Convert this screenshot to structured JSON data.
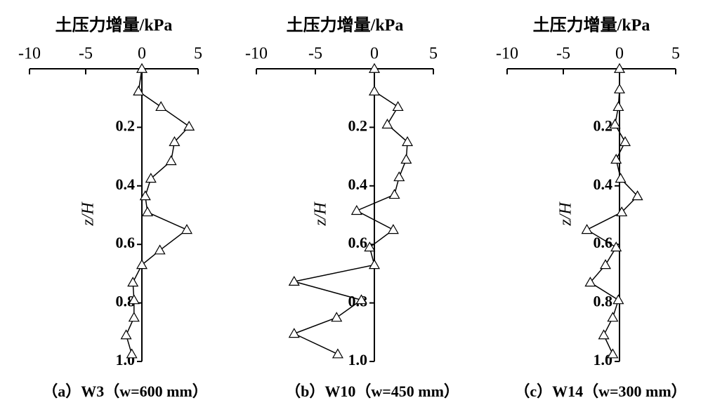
{
  "chart_data": [
    {
      "type": "line",
      "title": "土压力增量/kPa",
      "ylabel": "z/H",
      "caption": "（a）W3（w=600 mm）",
      "color": "#000000",
      "marker": "triangle",
      "xlim": [
        -10,
        5
      ],
      "xticks": [
        -10,
        -5,
        0,
        5
      ],
      "ylim": [
        0,
        1
      ],
      "yticks": [
        0.2,
        0.4,
        0.6,
        0.8,
        {
          "value": 1,
          "label": "1.0"
        }
      ],
      "y_inverted": true,
      "x_axis_position": "top",
      "x": [
        0,
        -0.3,
        1.7,
        4.2,
        2.9,
        2.6,
        0.8,
        0.3,
        0.5,
        4.0,
        1.6,
        0,
        -0.8,
        -0.7,
        -0.7,
        -1.4,
        -0.9
      ],
      "values": [
        0,
        0.077,
        0.13,
        0.197,
        0.25,
        0.315,
        0.375,
        0.435,
        0.49,
        0.55,
        0.62,
        0.67,
        0.73,
        0.79,
        0.85,
        0.91,
        0.975
      ]
    },
    {
      "type": "line",
      "title": "土压力增量/kPa",
      "ylabel": "z/H",
      "caption": "（b）W10（w=450 mm）",
      "color": "#000000",
      "marker": "triangle",
      "xlim": [
        -10,
        5
      ],
      "xticks": [
        -10,
        -5,
        0,
        5
      ],
      "ylim": [
        0,
        1
      ],
      "yticks": [
        0.2,
        0.4,
        0.6,
        0.8,
        {
          "value": 1,
          "label": "1.0"
        }
      ],
      "y_inverted": true,
      "x_axis_position": "top",
      "x": [
        0,
        0,
        2.0,
        1.1,
        2.8,
        2.7,
        2.1,
        1.7,
        -1.5,
        1.6,
        -0.4,
        0,
        -6.8,
        -1.1,
        -3.2,
        -6.8,
        -3.1
      ],
      "values": [
        0,
        0.077,
        0.13,
        0.19,
        0.25,
        0.31,
        0.37,
        0.43,
        0.485,
        0.55,
        0.61,
        0.67,
        0.727,
        0.79,
        0.85,
        0.905,
        0.975
      ]
    },
    {
      "type": "line",
      "title": "土压力增量/kPa",
      "ylabel": "z/H",
      "caption": "（c）W14（w=300 mm）",
      "color": "#000000",
      "marker": "triangle",
      "xlim": [
        -10,
        5
      ],
      "xticks": [
        -10,
        -5,
        0,
        5
      ],
      "ylim": [
        0,
        1
      ],
      "yticks": [
        0.2,
        0.4,
        0.6,
        0.8,
        {
          "value": 1,
          "label": "1.0"
        }
      ],
      "y_inverted": true,
      "x_axis_position": "top",
      "x": [
        0,
        0,
        -0.1,
        -0.4,
        0.5,
        -0.3,
        0.1,
        1.6,
        0.2,
        -2.9,
        -0.3,
        -1.25,
        -2.6,
        -0.1,
        -0.6,
        -1.4,
        -0.6
      ],
      "values": [
        0,
        0.07,
        0.13,
        0.19,
        0.25,
        0.31,
        0.375,
        0.435,
        0.49,
        0.55,
        0.61,
        0.67,
        0.73,
        0.79,
        0.85,
        0.91,
        0.975
      ]
    }
  ]
}
